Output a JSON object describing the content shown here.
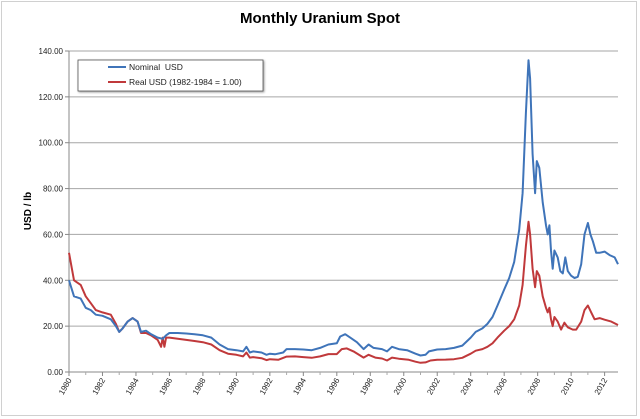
{
  "chart_data": {
    "type": "line",
    "title": "Monthly Uranium Spot",
    "xlabel": "",
    "ylabel": "USD / lb",
    "xlim": [
      1980,
      2012.8
    ],
    "ylim": [
      0,
      140
    ],
    "grid": true,
    "legend_position": "top-left",
    "x_ticks": [
      "1980",
      "1982",
      "1984",
      "1986",
      "1988",
      "1990",
      "1992",
      "1994",
      "1996",
      "1998",
      "2000",
      "2002",
      "2004",
      "2006",
      "2008",
      "2010",
      "2012"
    ],
    "y_ticks": [
      "0.00",
      "20.00",
      "40.00",
      "60.00",
      "80.00",
      "100.00",
      "120.00",
      "140.00"
    ],
    "series": [
      {
        "name": "Nominal  USD",
        "color": "#3f74b9",
        "points": [
          [
            1980,
            40
          ],
          [
            1980.3,
            33
          ],
          [
            1980.7,
            32
          ],
          [
            1981,
            28
          ],
          [
            1981.3,
            27
          ],
          [
            1981.6,
            25
          ],
          [
            1982,
            24.5
          ],
          [
            1982.5,
            23
          ],
          [
            1982.8,
            20
          ],
          [
            1983,
            17.5
          ],
          [
            1983.2,
            19
          ],
          [
            1983.5,
            22
          ],
          [
            1983.8,
            23.5
          ],
          [
            1984.1,
            22
          ],
          [
            1984.3,
            17.5
          ],
          [
            1984.6,
            18
          ],
          [
            1984.9,
            16.5
          ],
          [
            1985.3,
            15
          ],
          [
            1985.6,
            14.5
          ],
          [
            1985.8,
            16
          ],
          [
            1986,
            17
          ],
          [
            1986.5,
            17
          ],
          [
            1987,
            16.8
          ],
          [
            1987.5,
            16.5
          ],
          [
            1988,
            16
          ],
          [
            1988.5,
            15
          ],
          [
            1989,
            12
          ],
          [
            1989.5,
            10
          ],
          [
            1990,
            9.5
          ],
          [
            1990.4,
            9
          ],
          [
            1990.6,
            11
          ],
          [
            1990.8,
            8.5
          ],
          [
            1991,
            9
          ],
          [
            1991.5,
            8.5
          ],
          [
            1991.8,
            7.5
          ],
          [
            1992,
            8
          ],
          [
            1992.3,
            7.7
          ],
          [
            1992.8,
            8.5
          ],
          [
            1993,
            10
          ],
          [
            1993.5,
            10
          ],
          [
            1994,
            9.8
          ],
          [
            1994.5,
            9.5
          ],
          [
            1995,
            10.5
          ],
          [
            1995.5,
            12
          ],
          [
            1996,
            12.5
          ],
          [
            1996.2,
            15.5
          ],
          [
            1996.5,
            16.5
          ],
          [
            1996.8,
            15
          ],
          [
            1997.2,
            13
          ],
          [
            1997.6,
            10
          ],
          [
            1997.9,
            12
          ],
          [
            1998.2,
            10.5
          ],
          [
            1998.7,
            10
          ],
          [
            1999,
            9
          ],
          [
            1999.3,
            11
          ],
          [
            1999.7,
            10
          ],
          [
            2000.2,
            9.5
          ],
          [
            2000.7,
            8
          ],
          [
            2001,
            7.2
          ],
          [
            2001.3,
            7.5
          ],
          [
            2001.5,
            9
          ],
          [
            2002,
            9.8
          ],
          [
            2002.5,
            10
          ],
          [
            2003,
            10.5
          ],
          [
            2003.5,
            11.5
          ],
          [
            2004,
            15
          ],
          [
            2004.3,
            17.5
          ],
          [
            2004.7,
            19
          ],
          [
            2005,
            21
          ],
          [
            2005.3,
            24
          ],
          [
            2005.6,
            29
          ],
          [
            2006,
            36
          ],
          [
            2006.3,
            41
          ],
          [
            2006.6,
            48
          ],
          [
            2006.9,
            62
          ],
          [
            2007.1,
            78
          ],
          [
            2007.3,
            113
          ],
          [
            2007.45,
            136
          ],
          [
            2007.55,
            128
          ],
          [
            2007.7,
            95
          ],
          [
            2007.85,
            78
          ],
          [
            2007.95,
            92
          ],
          [
            2008.1,
            89
          ],
          [
            2008.3,
            74
          ],
          [
            2008.5,
            64
          ],
          [
            2008.6,
            60
          ],
          [
            2008.7,
            64
          ],
          [
            2008.8,
            53
          ],
          [
            2008.9,
            45
          ],
          [
            2009,
            53
          ],
          [
            2009.2,
            50
          ],
          [
            2009.35,
            44
          ],
          [
            2009.5,
            43
          ],
          [
            2009.65,
            50
          ],
          [
            2009.8,
            44
          ],
          [
            2010,
            42
          ],
          [
            2010.2,
            41
          ],
          [
            2010.4,
            41.5
          ],
          [
            2010.6,
            47
          ],
          [
            2010.8,
            60
          ],
          [
            2011,
            65
          ],
          [
            2011.15,
            60
          ],
          [
            2011.3,
            57
          ],
          [
            2011.5,
            52
          ],
          [
            2011.7,
            52
          ],
          [
            2012,
            52.5
          ],
          [
            2012.3,
            51
          ],
          [
            2012.6,
            50
          ],
          [
            2012.8,
            47
          ]
        ]
      },
      {
        "name": "Real USD (1982-1984 = 1.00)",
        "color": "#c0393b",
        "points": [
          [
            1980,
            52
          ],
          [
            1980.3,
            40
          ],
          [
            1980.7,
            38
          ],
          [
            1981,
            33
          ],
          [
            1981.3,
            30
          ],
          [
            1981.6,
            27
          ],
          [
            1982,
            26
          ],
          [
            1982.5,
            25
          ],
          [
            1982.8,
            21
          ],
          [
            1983,
            17.5
          ],
          [
            1983.2,
            19
          ],
          [
            1983.5,
            22
          ],
          [
            1983.8,
            23.5
          ],
          [
            1984.1,
            22
          ],
          [
            1984.3,
            17
          ],
          [
            1984.6,
            17
          ],
          [
            1984.9,
            16
          ],
          [
            1985.3,
            14
          ],
          [
            1985.5,
            11
          ],
          [
            1985.6,
            15
          ],
          [
            1985.7,
            11
          ],
          [
            1985.8,
            15
          ],
          [
            1986,
            15
          ],
          [
            1986.5,
            14.5
          ],
          [
            1987,
            14
          ],
          [
            1987.5,
            13.5
          ],
          [
            1988,
            13
          ],
          [
            1988.5,
            12
          ],
          [
            1989,
            9.5
          ],
          [
            1989.5,
            8
          ],
          [
            1990,
            7.5
          ],
          [
            1990.4,
            6.8
          ],
          [
            1990.6,
            8.5
          ],
          [
            1990.8,
            6.3
          ],
          [
            1991,
            6.5
          ],
          [
            1991.5,
            6
          ],
          [
            1991.8,
            5.2
          ],
          [
            1992,
            5.6
          ],
          [
            1992.5,
            5.3
          ],
          [
            1993,
            6.7
          ],
          [
            1993.5,
            6.8
          ],
          [
            1994,
            6.5
          ],
          [
            1994.5,
            6.2
          ],
          [
            1995,
            6.8
          ],
          [
            1995.5,
            7.8
          ],
          [
            1996,
            7.8
          ],
          [
            1996.3,
            10
          ],
          [
            1996.6,
            10.3
          ],
          [
            1997,
            9
          ],
          [
            1997.6,
            6.3
          ],
          [
            1997.9,
            7.5
          ],
          [
            1998.3,
            6.3
          ],
          [
            1998.7,
            5.9
          ],
          [
            1999,
            5
          ],
          [
            1999.3,
            6.3
          ],
          [
            1999.7,
            5.8
          ],
          [
            2000.3,
            5.3
          ],
          [
            2000.7,
            4.5
          ],
          [
            2001,
            4
          ],
          [
            2001.3,
            4.2
          ],
          [
            2001.6,
            5
          ],
          [
            2002,
            5.3
          ],
          [
            2002.5,
            5.4
          ],
          [
            2003,
            5.6
          ],
          [
            2003.5,
            6.2
          ],
          [
            2004,
            8
          ],
          [
            2004.3,
            9.3
          ],
          [
            2004.7,
            10
          ],
          [
            2005,
            11
          ],
          [
            2005.3,
            12.5
          ],
          [
            2005.6,
            15
          ],
          [
            2006,
            18
          ],
          [
            2006.3,
            20
          ],
          [
            2006.6,
            23
          ],
          [
            2006.9,
            29
          ],
          [
            2007.1,
            38
          ],
          [
            2007.3,
            55
          ],
          [
            2007.45,
            65.5
          ],
          [
            2007.55,
            60
          ],
          [
            2007.7,
            45
          ],
          [
            2007.85,
            37
          ],
          [
            2007.95,
            44
          ],
          [
            2008.1,
            42
          ],
          [
            2008.3,
            33
          ],
          [
            2008.5,
            28
          ],
          [
            2008.6,
            26
          ],
          [
            2008.7,
            28
          ],
          [
            2008.8,
            23
          ],
          [
            2008.9,
            20
          ],
          [
            2009,
            24
          ],
          [
            2009.2,
            22
          ],
          [
            2009.4,
            18.5
          ],
          [
            2009.6,
            21.5
          ],
          [
            2009.8,
            19.5
          ],
          [
            2010.1,
            18.5
          ],
          [
            2010.3,
            18.5
          ],
          [
            2010.6,
            22
          ],
          [
            2010.8,
            27
          ],
          [
            2011,
            29
          ],
          [
            2011.2,
            26
          ],
          [
            2011.4,
            23
          ],
          [
            2011.7,
            23.5
          ],
          [
            2012,
            22.8
          ],
          [
            2012.4,
            22
          ],
          [
            2012.8,
            20.5
          ]
        ]
      }
    ]
  }
}
